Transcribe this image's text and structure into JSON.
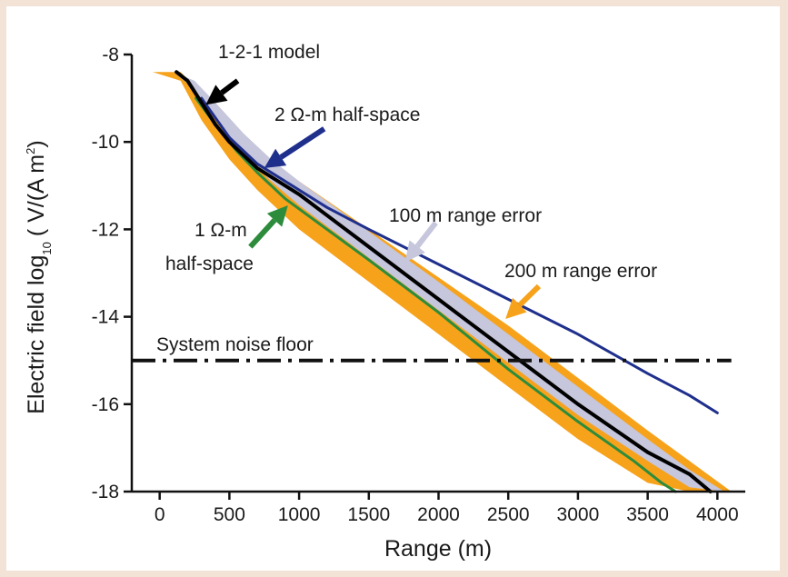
{
  "chart_data": {
    "type": "line",
    "xlabel": "Range (m)",
    "ylabel_main": "Electric field log",
    "ylabel_sub": "10",
    "ylabel_unit": "( V/(A m",
    "ylabel_sup": "2",
    "ylabel_close": ")",
    "xlim": [
      -200,
      4200
    ],
    "ylim": [
      -18,
      -8
    ],
    "x_ticks": [
      0,
      500,
      1000,
      1500,
      2000,
      2500,
      3000,
      3500,
      4000
    ],
    "y_ticks": [
      -8,
      -10,
      -12,
      -14,
      -16,
      -18
    ],
    "grid": false,
    "noise_floor": {
      "label": "System noise floor",
      "y": -15.0,
      "x_range": [
        -200,
        4100
      ],
      "color": "#111111"
    },
    "series": [
      {
        "name": "200 m range error",
        "color": "#f7a21b",
        "band": true,
        "x": [
          -50,
          150,
          300,
          500,
          700,
          1000,
          1500,
          2000,
          2500,
          3000,
          3500,
          3800,
          4100
        ],
        "upper": [
          -8.4,
          -8.4,
          -8.9,
          -9.6,
          -10.2,
          -10.9,
          -12.0,
          -13.1,
          -14.2,
          -15.4,
          -16.6,
          -17.3,
          -18.0
        ],
        "lower": [
          -8.4,
          -8.6,
          -9.5,
          -10.4,
          -11.1,
          -12.0,
          -13.2,
          -14.4,
          -15.6,
          -16.8,
          -17.8,
          -18.0,
          -18.0
        ]
      },
      {
        "name": "100 m range error",
        "color": "#c6c6dc",
        "band": true,
        "x": [
          100,
          250,
          400,
          600,
          800,
          1000,
          1500,
          2000,
          2500,
          3000,
          3500,
          3800,
          4050
        ],
        "upper": [
          -8.4,
          -8.6,
          -9.1,
          -9.8,
          -10.4,
          -10.9,
          -12.05,
          -13.2,
          -14.4,
          -15.6,
          -16.8,
          -17.5,
          -18.0
        ],
        "lower": [
          -8.4,
          -8.8,
          -9.5,
          -10.3,
          -10.9,
          -11.45,
          -12.65,
          -13.85,
          -15.05,
          -16.25,
          -17.3,
          -17.9,
          -18.0
        ]
      },
      {
        "name": "1 Ω-m half-space",
        "color": "#2c8c3c",
        "x": [
          260,
          400,
          550,
          700,
          900,
          1200,
          1500,
          2000,
          2500,
          3000,
          3400,
          3600,
          3700
        ],
        "y": [
          -9.0,
          -9.6,
          -10.2,
          -10.7,
          -11.3,
          -12.0,
          -12.7,
          -13.9,
          -15.2,
          -16.4,
          -17.3,
          -17.8,
          -18.0
        ]
      },
      {
        "name": "2 Ω-m half-space",
        "color": "#1f2f8c",
        "x": [
          300,
          500,
          700,
          900,
          1200,
          1500,
          2000,
          2500,
          3000,
          3500,
          3800,
          4000
        ],
        "y": [
          -9.0,
          -9.9,
          -10.5,
          -10.9,
          -11.5,
          -12.0,
          -12.8,
          -13.6,
          -14.4,
          -15.3,
          -15.8,
          -16.2
        ]
      },
      {
        "name": "1-2-1 model",
        "color": "#000000",
        "x": [
          120,
          200,
          300,
          400,
          500,
          700,
          1000,
          1500,
          2000,
          2500,
          3000,
          3500,
          3800,
          3950
        ],
        "y": [
          -8.4,
          -8.6,
          -9.1,
          -9.6,
          -10.0,
          -10.6,
          -11.2,
          -12.4,
          -13.6,
          -14.8,
          -16.0,
          -17.1,
          -17.6,
          -18.0
        ]
      }
    ],
    "annotations": [
      {
        "id": "a121",
        "text": "1-2-1 model",
        "color": "#000000",
        "tip": [
          330,
          -9.15
        ],
        "tail": [
          560,
          -8.6
        ]
      },
      {
        "id": "a2om",
        "text": "2 Ω-m half-space",
        "color": "#1f2f8c",
        "tip": [
          750,
          -10.6
        ],
        "tail": [
          1180,
          -9.7
        ]
      },
      {
        "id": "a100",
        "text": "100 m range error",
        "color": "#c6c6dc",
        "tip": [
          1760,
          -12.75
        ],
        "tail": [
          1980,
          -11.85
        ]
      },
      {
        "id": "a200",
        "text": "200 m range error",
        "color": "#f7a21b",
        "tip": [
          2480,
          -14.05
        ],
        "tail": [
          2720,
          -13.3
        ]
      },
      {
        "id": "a1om",
        "text": "1 Ω-m",
        "text2": "half-space",
        "color": "#2c8c3c",
        "tip": [
          920,
          -11.45
        ],
        "tail": [
          650,
          -12.4
        ]
      }
    ]
  }
}
